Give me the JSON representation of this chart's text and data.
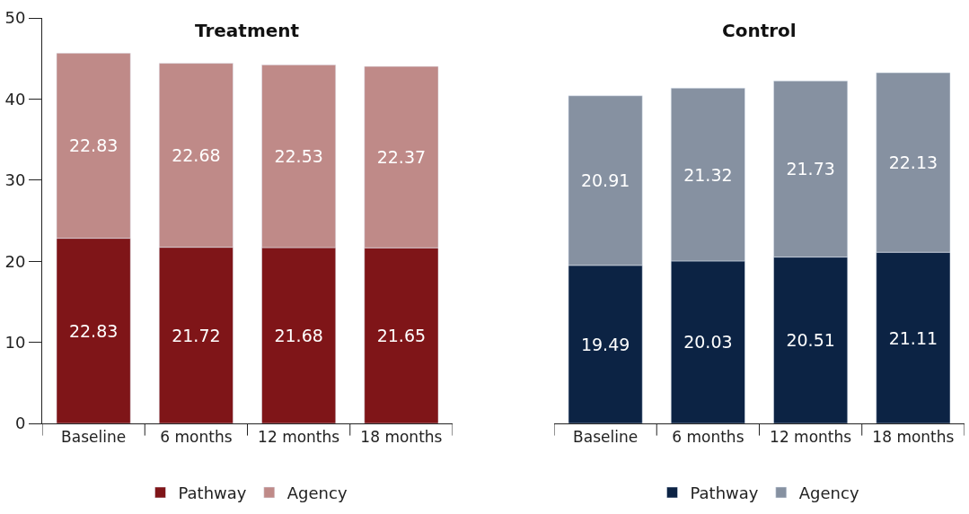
{
  "chart_data": [
    {
      "type": "bar",
      "title": "Treatment",
      "categories": [
        "Baseline",
        "6 months",
        "12 months",
        "18 months"
      ],
      "stacked": true,
      "data_labels": true,
      "legend": "bottom",
      "ylim": [
        0,
        50
      ],
      "yticks": [
        0,
        10,
        20,
        30,
        40,
        50
      ],
      "series": [
        {
          "name": "Pathway",
          "color": "#7f1518",
          "values": [
            22.83,
            21.72,
            21.68,
            21.65
          ]
        },
        {
          "name": "Agency",
          "color": "#bf8a88",
          "values": [
            22.83,
            22.68,
            22.53,
            22.37
          ]
        }
      ]
    },
    {
      "type": "bar",
      "title": "Control",
      "categories": [
        "Baseline",
        "6 months",
        "12 months",
        "18 months"
      ],
      "stacked": true,
      "data_labels": true,
      "legend": "bottom",
      "ylim": [
        0,
        50
      ],
      "yticks": [
        0,
        10,
        20,
        30,
        40,
        50
      ],
      "tick_labels": "x",
      "series": [
        {
          "name": "Pathway",
          "color": "#0c2344",
          "values": [
            19.49,
            20.03,
            20.51,
            21.11
          ]
        },
        {
          "name": "Agency",
          "color": "#8691a1",
          "values": [
            20.91,
            21.32,
            21.73,
            22.13
          ]
        }
      ]
    }
  ]
}
